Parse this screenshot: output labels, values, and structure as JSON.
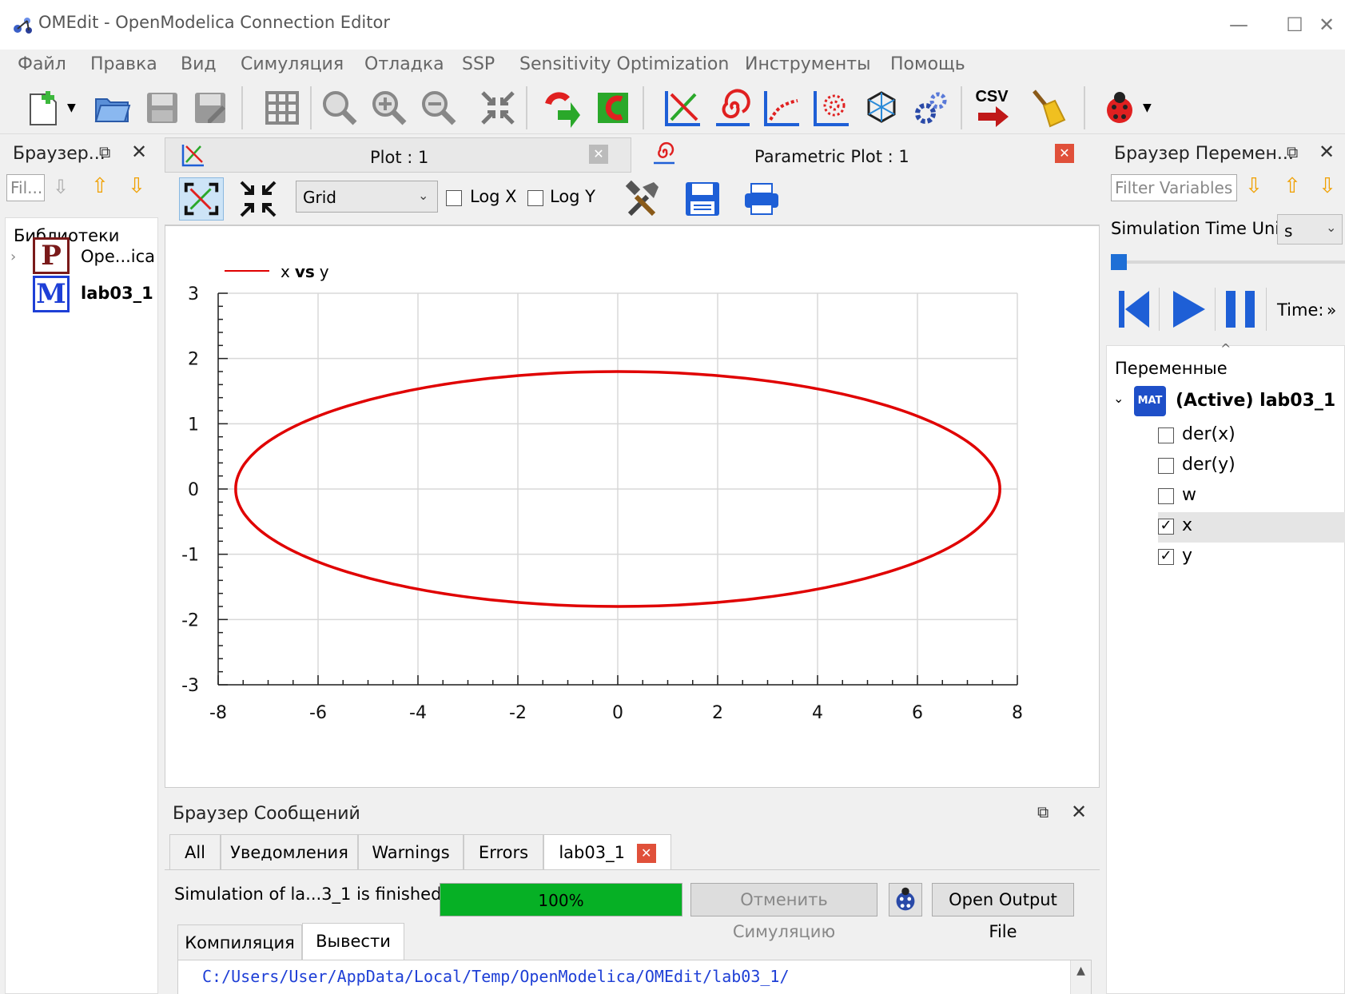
{
  "window": {
    "title": "OMEdit - OpenModelica Connection Editor"
  },
  "menu": [
    "Файл",
    "Правка",
    "Вид",
    "Симуляция",
    "Отладка",
    "SSP",
    "Sensitivity Optimization",
    "Инструменты",
    "Помощь"
  ],
  "left_pane": {
    "title": "Браузер...",
    "filter_placeholder": "Fil...",
    "libraries_label": "Библиотеки",
    "items": [
      {
        "letter": "P",
        "label": "Ope...ica"
      },
      {
        "letter": "M",
        "label": "lab03_1"
      }
    ]
  },
  "tabs": [
    {
      "label": "Plot : 1"
    },
    {
      "label": "Parametric Plot : 1"
    }
  ],
  "plot_toolbar": {
    "grid_select": "Grid",
    "logx_label": "Log X",
    "logy_label": "Log Y"
  },
  "chart_data": {
    "type": "line",
    "legend": {
      "text_x": "x",
      "text_vs": "vs",
      "text_y": "y",
      "placement": "top-left"
    },
    "series": [
      {
        "name": "x vs y",
        "color": "#e00000",
        "shape": "ellipse",
        "center": [
          0,
          0
        ],
        "x_radius": 7.65,
        "y_radius": 1.8
      }
    ],
    "xlim": [
      -8,
      8
    ],
    "ylim": [
      -3,
      3
    ],
    "xticks": [
      "-8",
      "-6",
      "-4",
      "-2",
      "0",
      "2",
      "4",
      "6",
      "8"
    ],
    "yticks": [
      "3",
      "2",
      "1",
      "0",
      "-1",
      "-2",
      "-3"
    ],
    "grid": true
  },
  "messages": {
    "title": "Браузер Сообщений",
    "tabs": [
      "All",
      "Уведомления",
      "Warnings",
      "Errors",
      "lab03_1"
    ],
    "status": "Simulation of la...3_1 is finished.",
    "progress_text": "100%",
    "progress": 1.0,
    "cancel_label": "Отменить Симуляцию",
    "open_output_label": "Open Output File",
    "sub_tabs": [
      "Компиляция",
      "Вывести"
    ],
    "output_path": "C:/Users/User/AppData/Local/Temp/OpenModelica/OMEdit/lab03_1/"
  },
  "right_pane": {
    "title": "Браузер Перемен...",
    "filter_placeholder": "Filter Variables",
    "time_unit_label": "Simulation Time Unit",
    "time_unit_value": "s",
    "time_label": "Time:",
    "time_more": "»",
    "variables_header": "Переменные",
    "model_label": "(Active) lab03_1",
    "mat_badge": "MAT",
    "variables": [
      {
        "name": "der(x)",
        "checked": false
      },
      {
        "name": "der(y)",
        "checked": false
      },
      {
        "name": "w",
        "checked": false
      },
      {
        "name": "x",
        "checked": true
      },
      {
        "name": "y",
        "checked": true
      }
    ]
  },
  "colors": {
    "accent_blue": "#1e5fd6",
    "progress_green": "#06b025",
    "curve_red": "#e00000"
  },
  "toolbar_icons": [
    "new-file-icon",
    "open-folder-icon",
    "save-icon",
    "save-as-icon",
    "grid-icon",
    "zoom-icon",
    "zoom-in-icon",
    "zoom-out-icon",
    "fit-icon",
    "simulate-icon",
    "simulation-setup-icon",
    "plot-icon",
    "parametric-plot-icon",
    "array-plot-icon",
    "array-parametric-icon",
    "3d-view-icon",
    "settings-icon",
    "export-csv-icon",
    "clear-icon",
    "debugger-icon"
  ],
  "toolbar_csv_text": "CSV"
}
